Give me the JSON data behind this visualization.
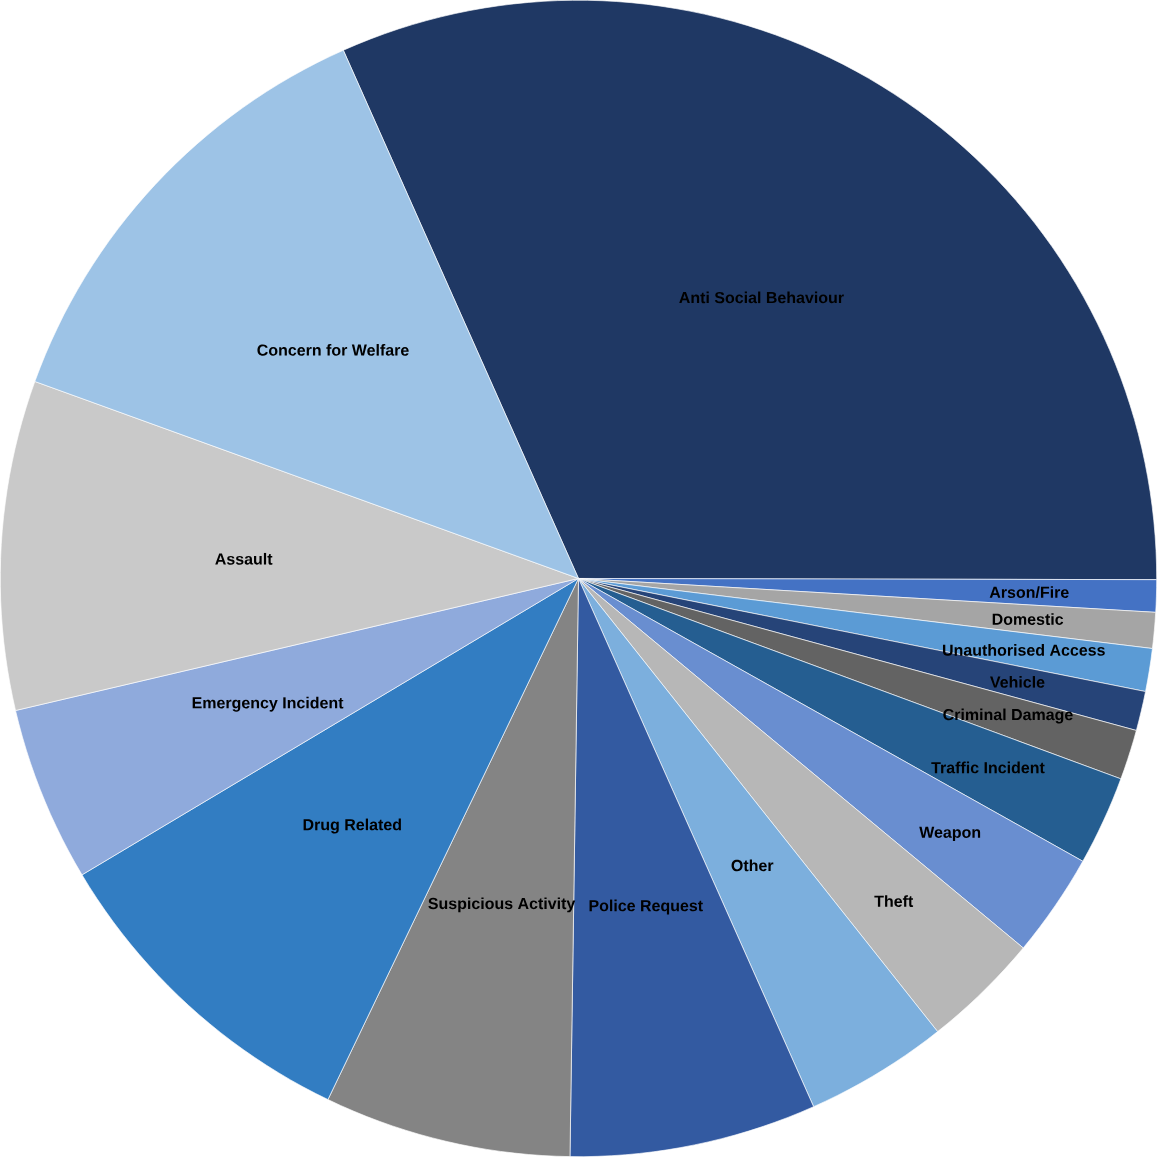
{
  "chart_data": {
    "type": "pie",
    "categories": [
      "Anti Social Behaviour",
      "Arson/Fire",
      "Domestic",
      "Unauthorised Access",
      "Vehicle",
      "Criminal Damage",
      "Traffic Incident",
      "Weapon",
      "Theft",
      "Other",
      "Police Request",
      "Suspicious Activity",
      "Drug Related",
      "Emergency Incident",
      "Assault",
      "Concern for Welfare"
    ],
    "values": [
      31.7,
      0.9,
      1.0,
      1.2,
      1.1,
      1.4,
      2.5,
      2.9,
      3.3,
      4.0,
      6.9,
      6.9,
      9.3,
      4.9,
      9.2,
      12.8
    ],
    "colors": [
      "#1f3864",
      "#4472c4",
      "#a5a5a5",
      "#5b9bd5",
      "#264478",
      "#636363",
      "#255e91",
      "#698ed0",
      "#b7b7b7",
      "#7cafdd",
      "#335aa1",
      "#848484",
      "#327dc2",
      "#8faadc",
      "#c9c9c9",
      "#9dc3e6"
    ]
  }
}
